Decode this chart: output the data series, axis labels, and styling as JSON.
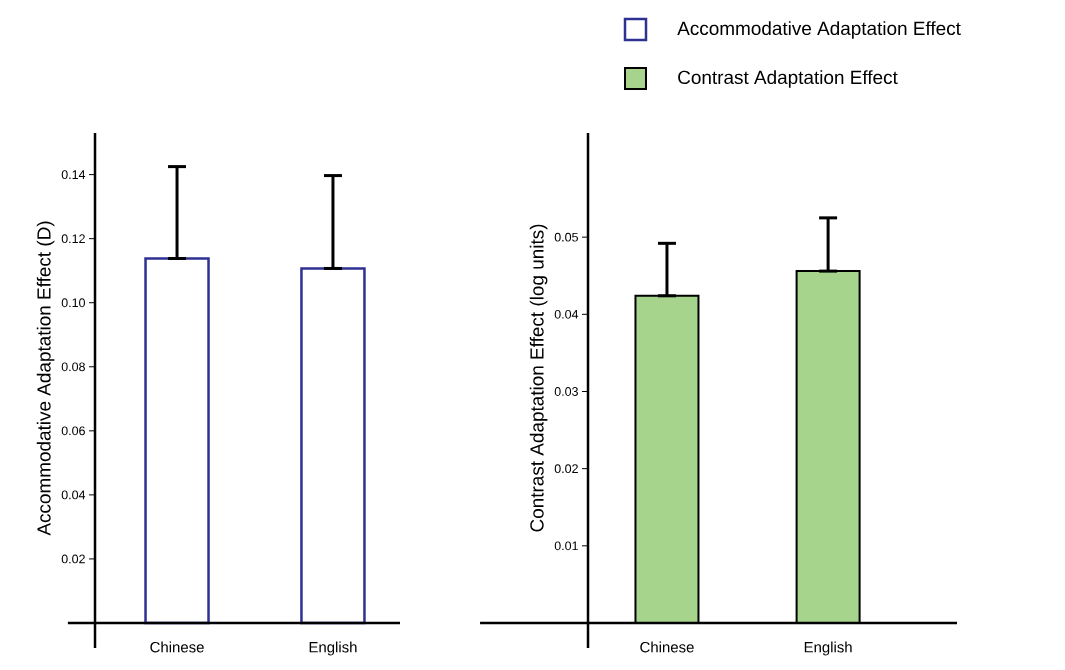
{
  "chart_data": [
    {
      "type": "bar",
      "ylabel": "Accommodative  Adaptation  Effect  (D)",
      "categories": [
        "Chinese",
        "English"
      ],
      "series": [
        {
          "name": "Accommodative Adaptation Effect",
          "color": "#ffffff",
          "values": [
            0.1138,
            0.1107
          ],
          "errors": [
            [
              0.1138,
              0.1425
            ],
            [
              0.1107,
              0.1397
            ]
          ]
        }
      ],
      "ylim": [
        0,
        0.153
      ],
      "yticks": [
        {
          "value": 0.02,
          "label": "0.02"
        },
        {
          "value": 0.04,
          "label": "0.04"
        },
        {
          "value": 0.06,
          "label": "0.06"
        },
        {
          "value": 0.08,
          "label": "0.08"
        },
        {
          "value": 0.1,
          "label": "0.10"
        },
        {
          "value": 0.12,
          "label": "0.12"
        },
        {
          "value": 0.14,
          "label": "0.14"
        }
      ],
      "legend": "top right"
    },
    {
      "type": "bar",
      "ylabel": "Contrast Adaptation  Effect  (log units)",
      "categories": [
        "Chinese",
        "English"
      ],
      "series": [
        {
          "name": "Contrast Adaptation Effect",
          "color": "#a6d48c",
          "values": [
            0.0424,
            0.0456
          ],
          "errors": [
            [
              0.0424,
              0.0492
            ],
            [
              0.0456,
              0.0525
            ]
          ]
        }
      ],
      "ylim": [
        0,
        0.0635
      ],
      "yticks": [
        0.01,
        0.02,
        0.03,
        0.04,
        0.05
      ],
      "legend": "top right"
    }
  ]
}
